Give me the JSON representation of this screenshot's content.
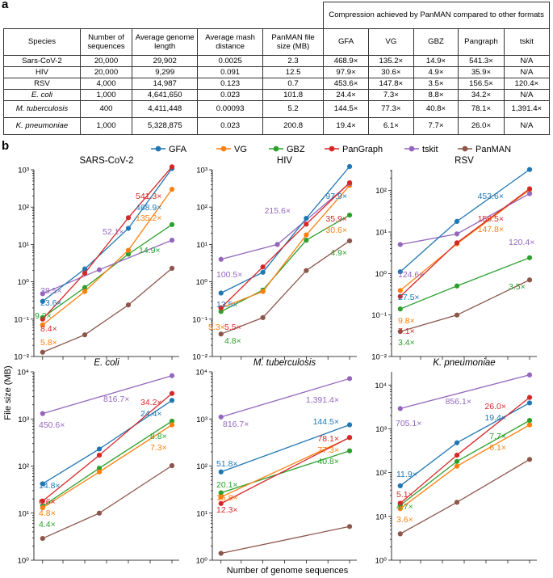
{
  "panel_a": "a",
  "panel_b": "b",
  "table": {
    "group_header": "Compression achieved by PanMAN compared to other formats",
    "headers": [
      "Species",
      "Number of sequences",
      "Average genome length",
      "Average mash distance",
      "PanMAN file size (MB)",
      "GFA",
      "VG",
      "GBZ",
      "Pangraph",
      "tskit"
    ],
    "rows": [
      {
        "species": "Sars-CoV-2",
        "italic": false,
        "cells": [
          "20,000",
          "29,902",
          "0.0025",
          "2.3",
          "468.9×",
          "135.2×",
          "14.9×",
          "541.3×",
          "N/A"
        ]
      },
      {
        "species": "HIV",
        "italic": false,
        "cells": [
          "20,000",
          "9,299",
          "0.091",
          "12.5",
          "97.9×",
          "30.6×",
          "4.9×",
          "35.9×",
          "N/A"
        ]
      },
      {
        "species": "RSV",
        "italic": false,
        "cells": [
          "4,000",
          "14,987",
          "0.123",
          "0.7",
          "453.6×",
          "147.8×",
          "3.5×",
          "156.5×",
          "120.4×"
        ]
      },
      {
        "species": "E. coli",
        "italic": true,
        "cells": [
          "1,000",
          "4,641,650",
          "0.023",
          "101.8",
          "24.4×",
          "7.3×",
          "8.8×",
          "34.2×",
          "N/A"
        ]
      },
      {
        "species": "M. tuberculosis",
        "italic": true,
        "cells": [
          "400",
          "4,411,448",
          "0.00093",
          "5.2",
          "144.5×",
          "77.3×",
          "40.8×",
          "78.1×",
          "1,391.4×"
        ]
      },
      {
        "species": "K. pneumoniae",
        "italic": true,
        "cells": [
          "1,000",
          "5,328,875",
          "0.023",
          "200.8",
          "19.4×",
          "6.1×",
          "7.7×",
          "26.0×",
          "N/A"
        ]
      }
    ]
  },
  "chart_data": {
    "type": "line",
    "ylabel": "File size (MB)",
    "xlabel": "Number of genome sequences",
    "y_scale": "log",
    "legend_position": "top",
    "colors": {
      "GFA": "#1f77b4",
      "VG": "#ff7f0e",
      "GBZ": "#2ca02c",
      "PanGraph": "#d62728",
      "tskit": "#9467bd",
      "PanMAN": "#8c564b"
    },
    "legend": [
      "GFA",
      "VG",
      "GBZ",
      "PanGraph",
      "tskit",
      "PanMAN"
    ],
    "panels": [
      {
        "title": "SARS-CoV-2",
        "italic": false,
        "ylog_range": [
          -2,
          3
        ],
        "series": [
          {
            "name": "GFA",
            "y": [
              0.3,
              2.2,
              27,
              1080
            ]
          },
          {
            "name": "VG",
            "y": [
              0.07,
              0.55,
              7,
              300
            ]
          },
          {
            "name": "GBZ",
            "y": [
              0.11,
              0.7,
              5.5,
              34
            ]
          },
          {
            "name": "PanGraph",
            "y": [
              0.1,
              1.7,
              52,
              1200
            ]
          },
          {
            "name": "tskit",
            "y": [
              0.48,
              2.1,
              13
            ]
          },
          {
            "name": "PanMAN",
            "y": [
              0.013,
              0.038,
              0.24,
              2.3
            ]
          }
        ],
        "annotations": [
          {
            "text": "541.3×",
            "series": "PanGraph"
          },
          {
            "text": "468.9×",
            "series": "GFA"
          },
          {
            "text": "135.2×",
            "series": "VG"
          },
          {
            "text": "14.9×",
            "series": "GBZ"
          },
          {
            "text": "52.1×",
            "series": "tskit"
          },
          {
            "text": "38.5×",
            "series": "tskit"
          },
          {
            "text": "23.6×",
            "series": "GFA"
          },
          {
            "text": "9.2×",
            "series": "GBZ"
          },
          {
            "text": "8.4×",
            "series": "PanGraph"
          },
          {
            "text": "5.8×",
            "series": "VG"
          }
        ]
      },
      {
        "title": "HIV",
        "italic": false,
        "ylog_range": [
          -2,
          3
        ],
        "series": [
          {
            "name": "GFA",
            "y": [
              0.5,
              1.8,
              50,
              1220
            ]
          },
          {
            "name": "VG",
            "y": [
              0.2,
              0.55,
              18,
              380
            ]
          },
          {
            "name": "GBZ",
            "y": [
              0.16,
              0.6,
              13,
              61
            ]
          },
          {
            "name": "PanGraph",
            "y": [
              0.2,
              2.5,
              35,
              450
            ]
          },
          {
            "name": "tskit",
            "y": [
              4,
              10,
              430
            ]
          },
          {
            "name": "PanMAN",
            "y": [
              0.04,
              0.11,
              2,
              12.5
            ]
          }
        ],
        "annotations": [
          {
            "text": "97.9×",
            "series": "GFA"
          },
          {
            "text": "215.6×",
            "series": "tskit"
          },
          {
            "text": "35.9×",
            "series": "PanGraph"
          },
          {
            "text": "30.6×",
            "series": "VG"
          },
          {
            "text": "4.9×",
            "series": "GBZ"
          },
          {
            "text": "100.5×",
            "series": "tskit"
          },
          {
            "text": "13.5×",
            "series": "GFA"
          },
          {
            "text": "5.3×",
            "series": "VG"
          },
          {
            "text": "5.5×",
            "series": "PanGraph"
          },
          {
            "text": "4.8×",
            "series": "GBZ"
          }
        ]
      },
      {
        "title": "RSV",
        "italic": false,
        "ylog_range": [
          -2,
          2.5
        ],
        "series": [
          {
            "name": "GFA",
            "y": [
              1.1,
              18,
              320
            ]
          },
          {
            "name": "VG",
            "y": [
              0.39,
              5.2,
              104
            ]
          },
          {
            "name": "GBZ",
            "y": [
              0.14,
              0.5,
              2.4
            ]
          },
          {
            "name": "PanGraph",
            "y": [
              0.28,
              5.5,
              110
            ]
          },
          {
            "name": "tskit",
            "y": [
              5,
              9,
              84
            ]
          },
          {
            "name": "PanMAN",
            "y": [
              0.04,
              0.1,
              0.7
            ]
          }
        ],
        "annotations": [
          {
            "text": "453.6×",
            "series": "GFA"
          },
          {
            "text": "156.5×",
            "series": "PanGraph"
          },
          {
            "text": "147.8×",
            "series": "VG"
          },
          {
            "text": "124.6×",
            "series": "tskit"
          },
          {
            "text": "120.4×",
            "series": "tskit"
          },
          {
            "text": "27.5×",
            "series": "GFA"
          },
          {
            "text": "3.5×",
            "series": "GBZ"
          },
          {
            "text": "9.8×",
            "series": "VG"
          },
          {
            "text": "7.1×",
            "series": "PanGraph"
          },
          {
            "text": "3.4×",
            "series": "GBZ"
          }
        ]
      },
      {
        "title": "E. coli",
        "italic": true,
        "ylog_range": [
          0,
          4
        ],
        "series": [
          {
            "name": "GFA",
            "y": [
              42,
              230,
              2480
            ]
          },
          {
            "name": "VG",
            "y": [
              13,
              75,
              750
            ]
          },
          {
            "name": "GBZ",
            "y": [
              14,
              90,
              900
            ]
          },
          {
            "name": "PanGraph",
            "y": [
              18,
              170,
              3480
            ]
          },
          {
            "name": "tskit",
            "y": [
              1300,
              8300
            ]
          },
          {
            "name": "PanMAN",
            "y": [
              2.9,
              10,
              102
            ]
          }
        ],
        "annotations": [
          {
            "text": "816.7×",
            "series": "tskit"
          },
          {
            "text": "450.6×",
            "series": "tskit"
          },
          {
            "text": "34.2×",
            "series": "PanGraph"
          },
          {
            "text": "24.4×",
            "series": "GFA"
          },
          {
            "text": "8.8×",
            "series": "GBZ"
          },
          {
            "text": "7.3×",
            "series": "VG"
          },
          {
            "text": "14.8×",
            "series": "GFA"
          },
          {
            "text": "6.6×",
            "series": "PanGraph"
          },
          {
            "text": "4.8×",
            "series": "VG"
          },
          {
            "text": "4.4×",
            "series": "GBZ"
          }
        ]
      },
      {
        "title": "M. tuberculosis",
        "italic": true,
        "ylog_range": [
          0,
          4
        ],
        "series": [
          {
            "name": "GFA",
            "y": [
              75,
              750
            ]
          },
          {
            "name": "VG",
            "y": [
              22,
              400
            ]
          },
          {
            "name": "GBZ",
            "y": [
              27,
              210
            ]
          },
          {
            "name": "PanGraph",
            "y": [
              16,
              405
            ]
          },
          {
            "name": "tskit",
            "y": [
              1100,
              7200
            ]
          },
          {
            "name": "PanMAN",
            "y": [
              1.4,
              5.2
            ]
          }
        ],
        "annotations": [
          {
            "text": "1,391.4×",
            "series": "tskit"
          },
          {
            "text": "816.7×",
            "series": "tskit"
          },
          {
            "text": "144.5×",
            "series": "GFA"
          },
          {
            "text": "78.1×",
            "series": "PanGraph"
          },
          {
            "text": "77.3×",
            "series": "VG"
          },
          {
            "text": "40.8×",
            "series": "GBZ"
          },
          {
            "text": "51.8×",
            "series": "GFA"
          },
          {
            "text": "20.1×",
            "series": "GBZ"
          },
          {
            "text": "15.8×",
            "series": "VG"
          },
          {
            "text": "12.3×",
            "series": "PanGraph"
          }
        ]
      },
      {
        "title": "K. pneumoniae",
        "italic": true,
        "ylog_range": [
          0,
          4.3
        ],
        "series": [
          {
            "name": "GFA",
            "y": [
              50,
              480,
              3900
            ]
          },
          {
            "name": "VG",
            "y": [
              15,
              140,
              1230
            ]
          },
          {
            "name": "GBZ",
            "y": [
              18,
              180,
              1550
            ]
          },
          {
            "name": "PanGraph",
            "y": [
              20,
              250,
              5200
            ]
          },
          {
            "name": "tskit",
            "y": [
              2900,
              17000
            ]
          },
          {
            "name": "PanMAN",
            "y": [
              4,
              21,
              200
            ]
          }
        ],
        "annotations": [
          {
            "text": "856.1×",
            "series": "tskit"
          },
          {
            "text": "705.1×",
            "series": "tskit"
          },
          {
            "text": "26.0×",
            "series": "PanGraph"
          },
          {
            "text": "19.4×",
            "series": "GFA"
          },
          {
            "text": "7.7×",
            "series": "GBZ"
          },
          {
            "text": "6.1×",
            "series": "VG"
          },
          {
            "text": "11.9×",
            "series": "GFA"
          },
          {
            "text": "5.1×",
            "series": "PanGraph"
          },
          {
            "text": "4.7×",
            "series": "GBZ"
          },
          {
            "text": "3.6×",
            "series": "VG"
          }
        ]
      }
    ]
  }
}
